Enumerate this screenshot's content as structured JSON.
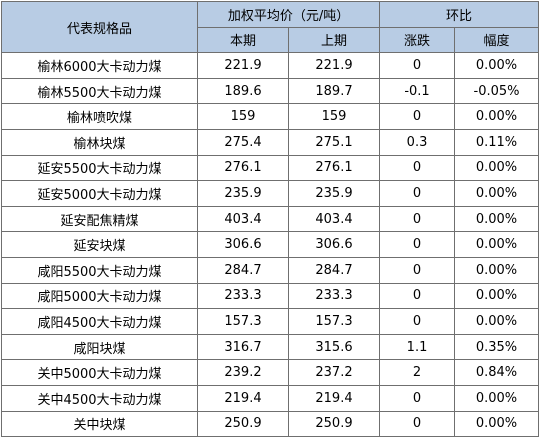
{
  "header": {
    "name_col": "代表规格品",
    "price_group": "加权平均价（元/吨）",
    "change_group": "环比",
    "current": "本期",
    "previous": "上期",
    "change": "涨跌",
    "pct": "幅度"
  },
  "rows": [
    {
      "name": "榆林6000大卡动力煤",
      "current": "221.9",
      "previous": "221.9",
      "change": "0",
      "pct": "0.00%"
    },
    {
      "name": "榆林5500大卡动力煤",
      "current": "189.6",
      "previous": "189.7",
      "change": "-0.1",
      "pct": "-0.05%"
    },
    {
      "name": "榆林喷吹煤",
      "current": "159",
      "previous": "159",
      "change": "0",
      "pct": "0.00%"
    },
    {
      "name": "榆林块煤",
      "current": "275.4",
      "previous": "275.1",
      "change": "0.3",
      "pct": "0.11%"
    },
    {
      "name": "延安5500大卡动力煤",
      "current": "276.1",
      "previous": "276.1",
      "change": "0",
      "pct": "0.00%"
    },
    {
      "name": "延安5000大卡动力煤",
      "current": "235.9",
      "previous": "235.9",
      "change": "0",
      "pct": "0.00%"
    },
    {
      "name": "延安配焦精煤",
      "current": "403.4",
      "previous": "403.4",
      "change": "0",
      "pct": "0.00%"
    },
    {
      "name": "延安块煤",
      "current": "306.6",
      "previous": "306.6",
      "change": "0",
      "pct": "0.00%"
    },
    {
      "name": "咸阳5500大卡动力煤",
      "current": "284.7",
      "previous": "284.7",
      "change": "0",
      "pct": "0.00%"
    },
    {
      "name": "咸阳5000大卡动力煤",
      "current": "233.3",
      "previous": "233.3",
      "change": "0",
      "pct": "0.00%"
    },
    {
      "name": "咸阳4500大卡动力煤",
      "current": "157.3",
      "previous": "157.3",
      "change": "0",
      "pct": "0.00%"
    },
    {
      "name": "咸阳块煤",
      "current": "316.7",
      "previous": "315.6",
      "change": "1.1",
      "pct": "0.35%"
    },
    {
      "name": "关中5000大卡动力煤",
      "current": "239.2",
      "previous": "237.2",
      "change": "2",
      "pct": "0.84%"
    },
    {
      "name": "关中4500大卡动力煤",
      "current": "219.4",
      "previous": "219.4",
      "change": "0",
      "pct": "0.00%"
    },
    {
      "name": "关中块煤",
      "current": "250.9",
      "previous": "250.9",
      "change": "0",
      "pct": "0.00%"
    }
  ]
}
